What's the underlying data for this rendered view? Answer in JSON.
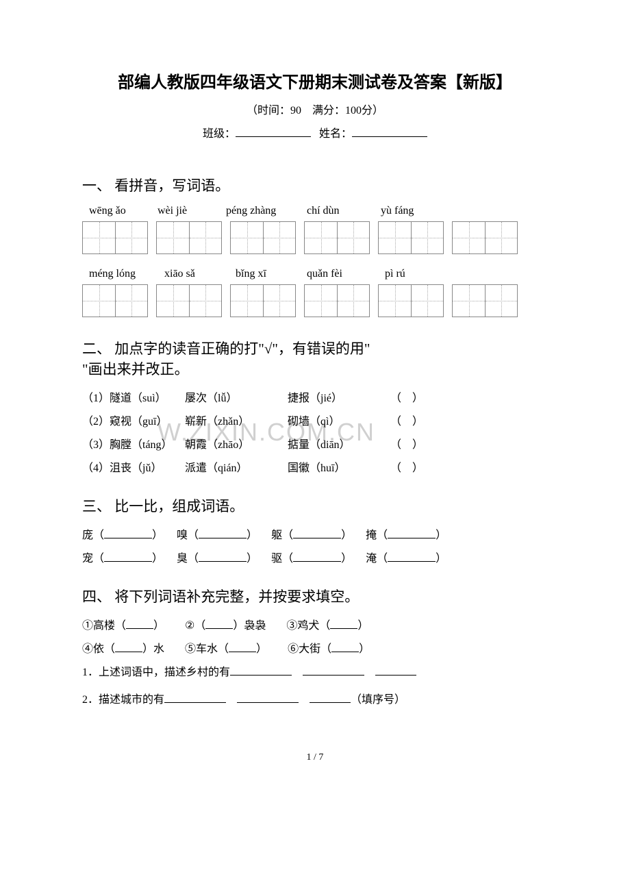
{
  "title": "部编人教版四年级语文下册期末测试卷及答案【新版】",
  "subtitle": "（时间：90　满分：100分）",
  "info": {
    "class_label": "班级：",
    "name_label": "姓名："
  },
  "section1": {
    "heading": "一、 看拼音，写词语。",
    "row1_pinyin": [
      "wēng ǎo",
      "wèi jiè",
      "péng zhàng",
      "chí dùn",
      "yù fáng"
    ],
    "row2_pinyin": [
      "méng lóng",
      "xiāo sǎ",
      "bǐng xī",
      "quǎn fèi",
      "pì rú"
    ]
  },
  "section2": {
    "heading_a": "二、 加点字的读音正确的打\"√\"，有错误的用\"",
    "heading_b": "\"画出来并改正。",
    "items": [
      {
        "num": "（1）",
        "a": "隧道（suì）",
        "b": "屡次（lǚ）",
        "c": "捷报（jié）",
        "p": "（　）"
      },
      {
        "num": "（2）",
        "a": "窥视（guī）",
        "b": "崭新（zhǎn）",
        "c": "砌墙（qì）",
        "p": "（　）"
      },
      {
        "num": "（3）",
        "a": "胸膛（táng）",
        "b": "朝霞（zhāo）",
        "c": "掂量（diān）",
        "p": "（　）"
      },
      {
        "num": "（4）",
        "a": "沮丧（jǔ）",
        "b": "派遣（qián）",
        "c": "国徽（huī）",
        "p": "（　）"
      }
    ]
  },
  "section3": {
    "heading": "三、 比一比，组成词语。",
    "rows": [
      [
        "庞（",
        "嗅（",
        "躯（",
        "掩（"
      ],
      [
        "宠（",
        "臭（",
        "驱（",
        "淹（"
      ]
    ]
  },
  "section4": {
    "heading": "四、 将下列词语补充完整，并按要求填空。",
    "row1": [
      "①高楼（",
      "②（",
      "）袅袅",
      "③鸡犬（"
    ],
    "row2": [
      "④依（",
      "）水",
      "⑤车水（",
      "⑥大街（"
    ],
    "q1": "1．上述词语中，描述乡村的有",
    "q2": "2．描述城市的有",
    "q2_end": "（填序号）"
  },
  "watermark": "W.ZIXIN.COM.CN",
  "pager": "1 / 7"
}
